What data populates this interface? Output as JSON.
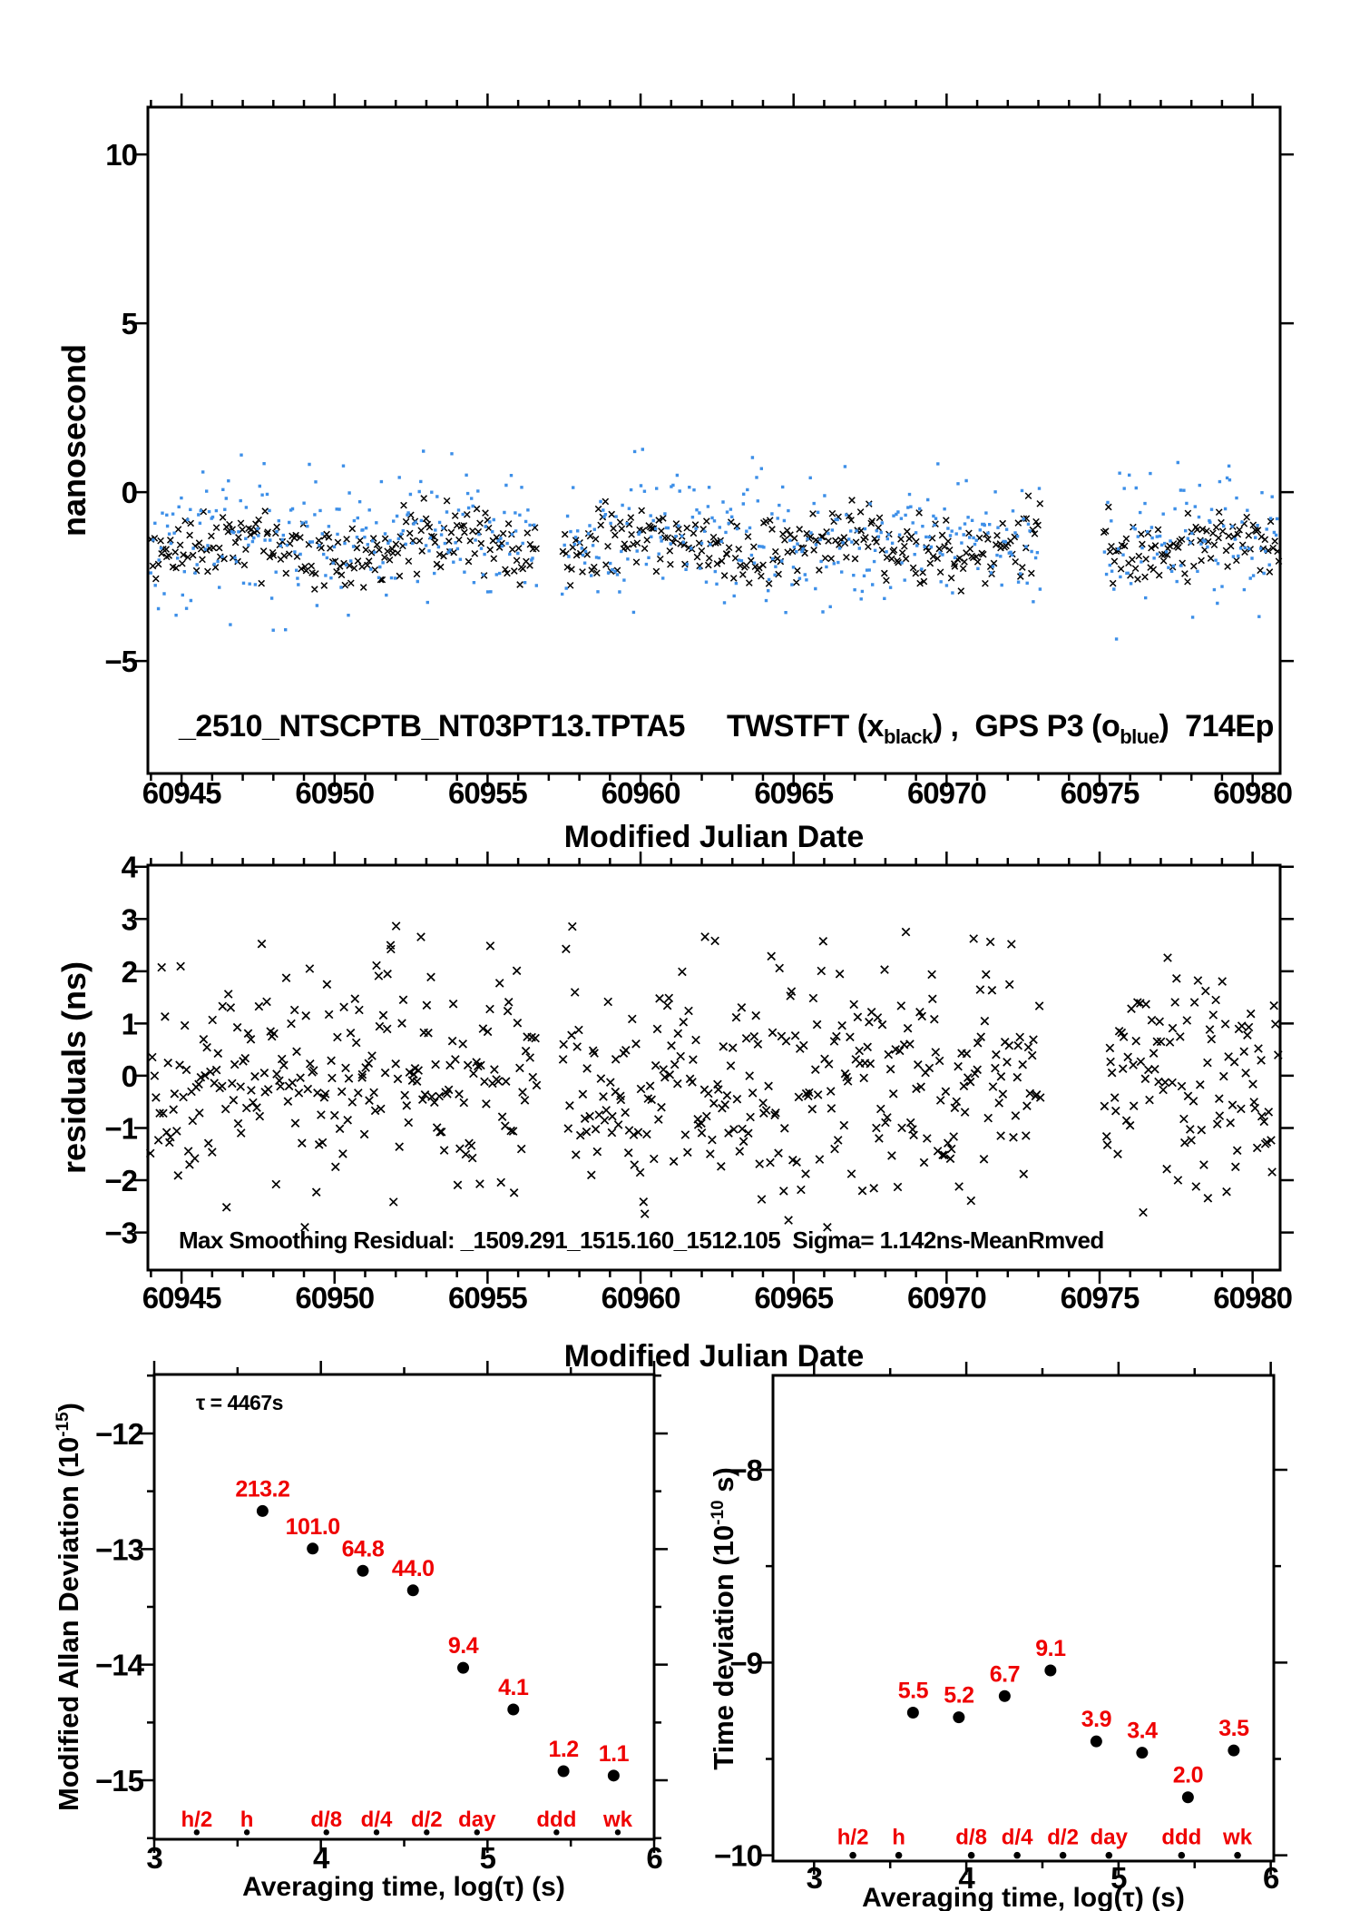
{
  "colors": {
    "twstft_black": "#000000",
    "gps_blue": "#3D8FE8",
    "annotation_red": "#EF0000",
    "axis_black": "#000000",
    "background": "#ffffff"
  },
  "chart_data": [
    {
      "id": "time-comparison",
      "type": "scatter",
      "title": {
        "file": "_2510_NTSCPTB_NT03PT13.TPTA5",
        "series1": "TWSTFT (x",
        "series1_sub": "black",
        "between": ") ,  GPS P3 (o",
        "series2_sub": "blue",
        "suffix": ")  714Ep"
      },
      "xlabel": "Modified Julian Date",
      "ylabel": "nanosecond",
      "xlim": [
        60943.9,
        60980.9
      ],
      "ylim": [
        -8.33,
        11.4
      ],
      "x_major_ticks": [
        60945,
        60950,
        60955,
        60960,
        60965,
        60970,
        60975,
        60980
      ],
      "x_minor_step": 1,
      "y_major_ticks": [
        10,
        5,
        0,
        -5
      ],
      "segments": [
        [
          60944.0,
          60956.6
        ],
        [
          60957.45,
          60973.1
        ],
        [
          60975.15,
          60980.85
        ]
      ],
      "series": [
        {
          "name": "TWSTFT",
          "marker": "x",
          "color": "#000000",
          "approx_mean_ns": -1.6,
          "approx_sd_ns": 0.5,
          "dt_days": 0.06,
          "wave_amp": 0.3,
          "wave_period_days": 6.5,
          "clamp": [
            -3.1,
            0.3
          ],
          "seed": 11
        },
        {
          "name": "GPS P3",
          "marker": "square-dot",
          "color": "#3D8FE8",
          "approx_mean_ns": -1.4,
          "approx_sd_ns": 1.0,
          "dt_days": 0.055,
          "wave_amp": 0.15,
          "wave_period_days": 9,
          "clamp": [
            -4.35,
            1.65
          ],
          "seed": 77
        }
      ]
    },
    {
      "id": "smoothing-residuals",
      "type": "scatter",
      "note": "Max Smoothing Residual: _1509.291_1515.160_1512.105  Sigma= 1.142ns-MeanRmved",
      "xlabel": "Modified Julian Date",
      "ylabel": "residuals (ns)",
      "xlim": [
        60943.9,
        60980.9
      ],
      "ylim": [
        -3.72,
        4.03
      ],
      "x_major_ticks": [
        60945,
        60950,
        60955,
        60960,
        60965,
        60970,
        60975,
        60980
      ],
      "x_minor_step": 1,
      "y_major_ticks": [
        4,
        3,
        2,
        1,
        0,
        -1,
        -2,
        -3
      ],
      "segments": [
        [
          60944.0,
          60956.6
        ],
        [
          60957.45,
          60973.1
        ],
        [
          60975.15,
          60980.85
        ]
      ],
      "series": [
        {
          "name": "residuals",
          "marker": "x",
          "color": "#000000",
          "approx_mean_ns": 0,
          "approx_sd_ns": 1.1,
          "dt_days": 0.055,
          "wave_amp": 0.25,
          "wave_period_days": 5,
          "clamp": [
            -2.9,
            3.2
          ],
          "seed": 23
        }
      ]
    },
    {
      "id": "modified-allan-deviation",
      "type": "scatter-labeled",
      "ylabel_pre": "Modified Allan Deviation (10",
      "ylabel_sup": "-15",
      "ylabel_post": ")",
      "xlabel": "Averaging time, log(τ) (s)",
      "annotation": "τ = 4467s",
      "xlim": [
        3.0,
        6.0
      ],
      "ylim": [
        -15.51,
        -11.49
      ],
      "x_major_ticks": [
        3,
        4,
        5,
        6
      ],
      "x_minor_step": 0.5,
      "y_major_ticks": [
        -12,
        -13,
        -14,
        -15
      ],
      "y_minor_step": 0.5,
      "points": {
        "log_tau": [
          3.65,
          3.951,
          4.252,
          4.553,
          4.854,
          5.155,
          5.456,
          5.757
        ],
        "value_labels": [
          "213.2",
          "101.0",
          "64.8",
          "44.0",
          "9.4",
          "4.1",
          "1.2",
          "1.1"
        ],
        "log_y": [
          -12.671,
          -12.996,
          -13.188,
          -13.357,
          -14.027,
          -14.387,
          -14.921,
          -14.959
        ]
      },
      "tau_marks": {
        "labels": [
          "h/2",
          "h",
          "d/8",
          "d/4",
          "d/2",
          "day",
          "ddd",
          "wk"
        ],
        "log_tau": [
          3.255,
          3.556,
          4.033,
          4.334,
          4.635,
          4.937,
          5.414,
          5.782
        ],
        "dot_y": -15.45,
        "label_y": -15.33
      }
    },
    {
      "id": "time-deviation",
      "type": "scatter-labeled",
      "ylabel_pre": "Time deviation (10",
      "ylabel_sup": "-10",
      "ylabel_post": " s)",
      "xlabel": "Averaging time, log(τ) (s)",
      "xlim": [
        2.73,
        6.02
      ],
      "ylim": [
        -10.03,
        -7.51
      ],
      "x_major_ticks": [
        3,
        4,
        5,
        6
      ],
      "x_minor_step": 0.5,
      "y_major_ticks": [
        -8,
        -9,
        -10
      ],
      "y_minor_step": 0.5,
      "points": {
        "log_tau": [
          3.65,
          3.951,
          4.252,
          4.553,
          4.854,
          5.155,
          5.456,
          5.757
        ],
        "value_labels": [
          "5.5",
          "5.2",
          "6.7",
          "9.1",
          "3.9",
          "3.4",
          "2.0",
          "3.5"
        ],
        "log_y": [
          -9.26,
          -9.284,
          -9.174,
          -9.041,
          -9.409,
          -9.468,
          -9.699,
          -9.456
        ]
      },
      "tau_marks": {
        "labels": [
          "h/2",
          "h",
          "d/8",
          "d/4",
          "d/2",
          "day",
          "ddd",
          "wk"
        ],
        "log_tau": [
          3.255,
          3.556,
          4.033,
          4.334,
          4.635,
          4.937,
          5.414,
          5.782
        ],
        "dot_y": -10.0,
        "label_y": -9.9
      }
    }
  ]
}
